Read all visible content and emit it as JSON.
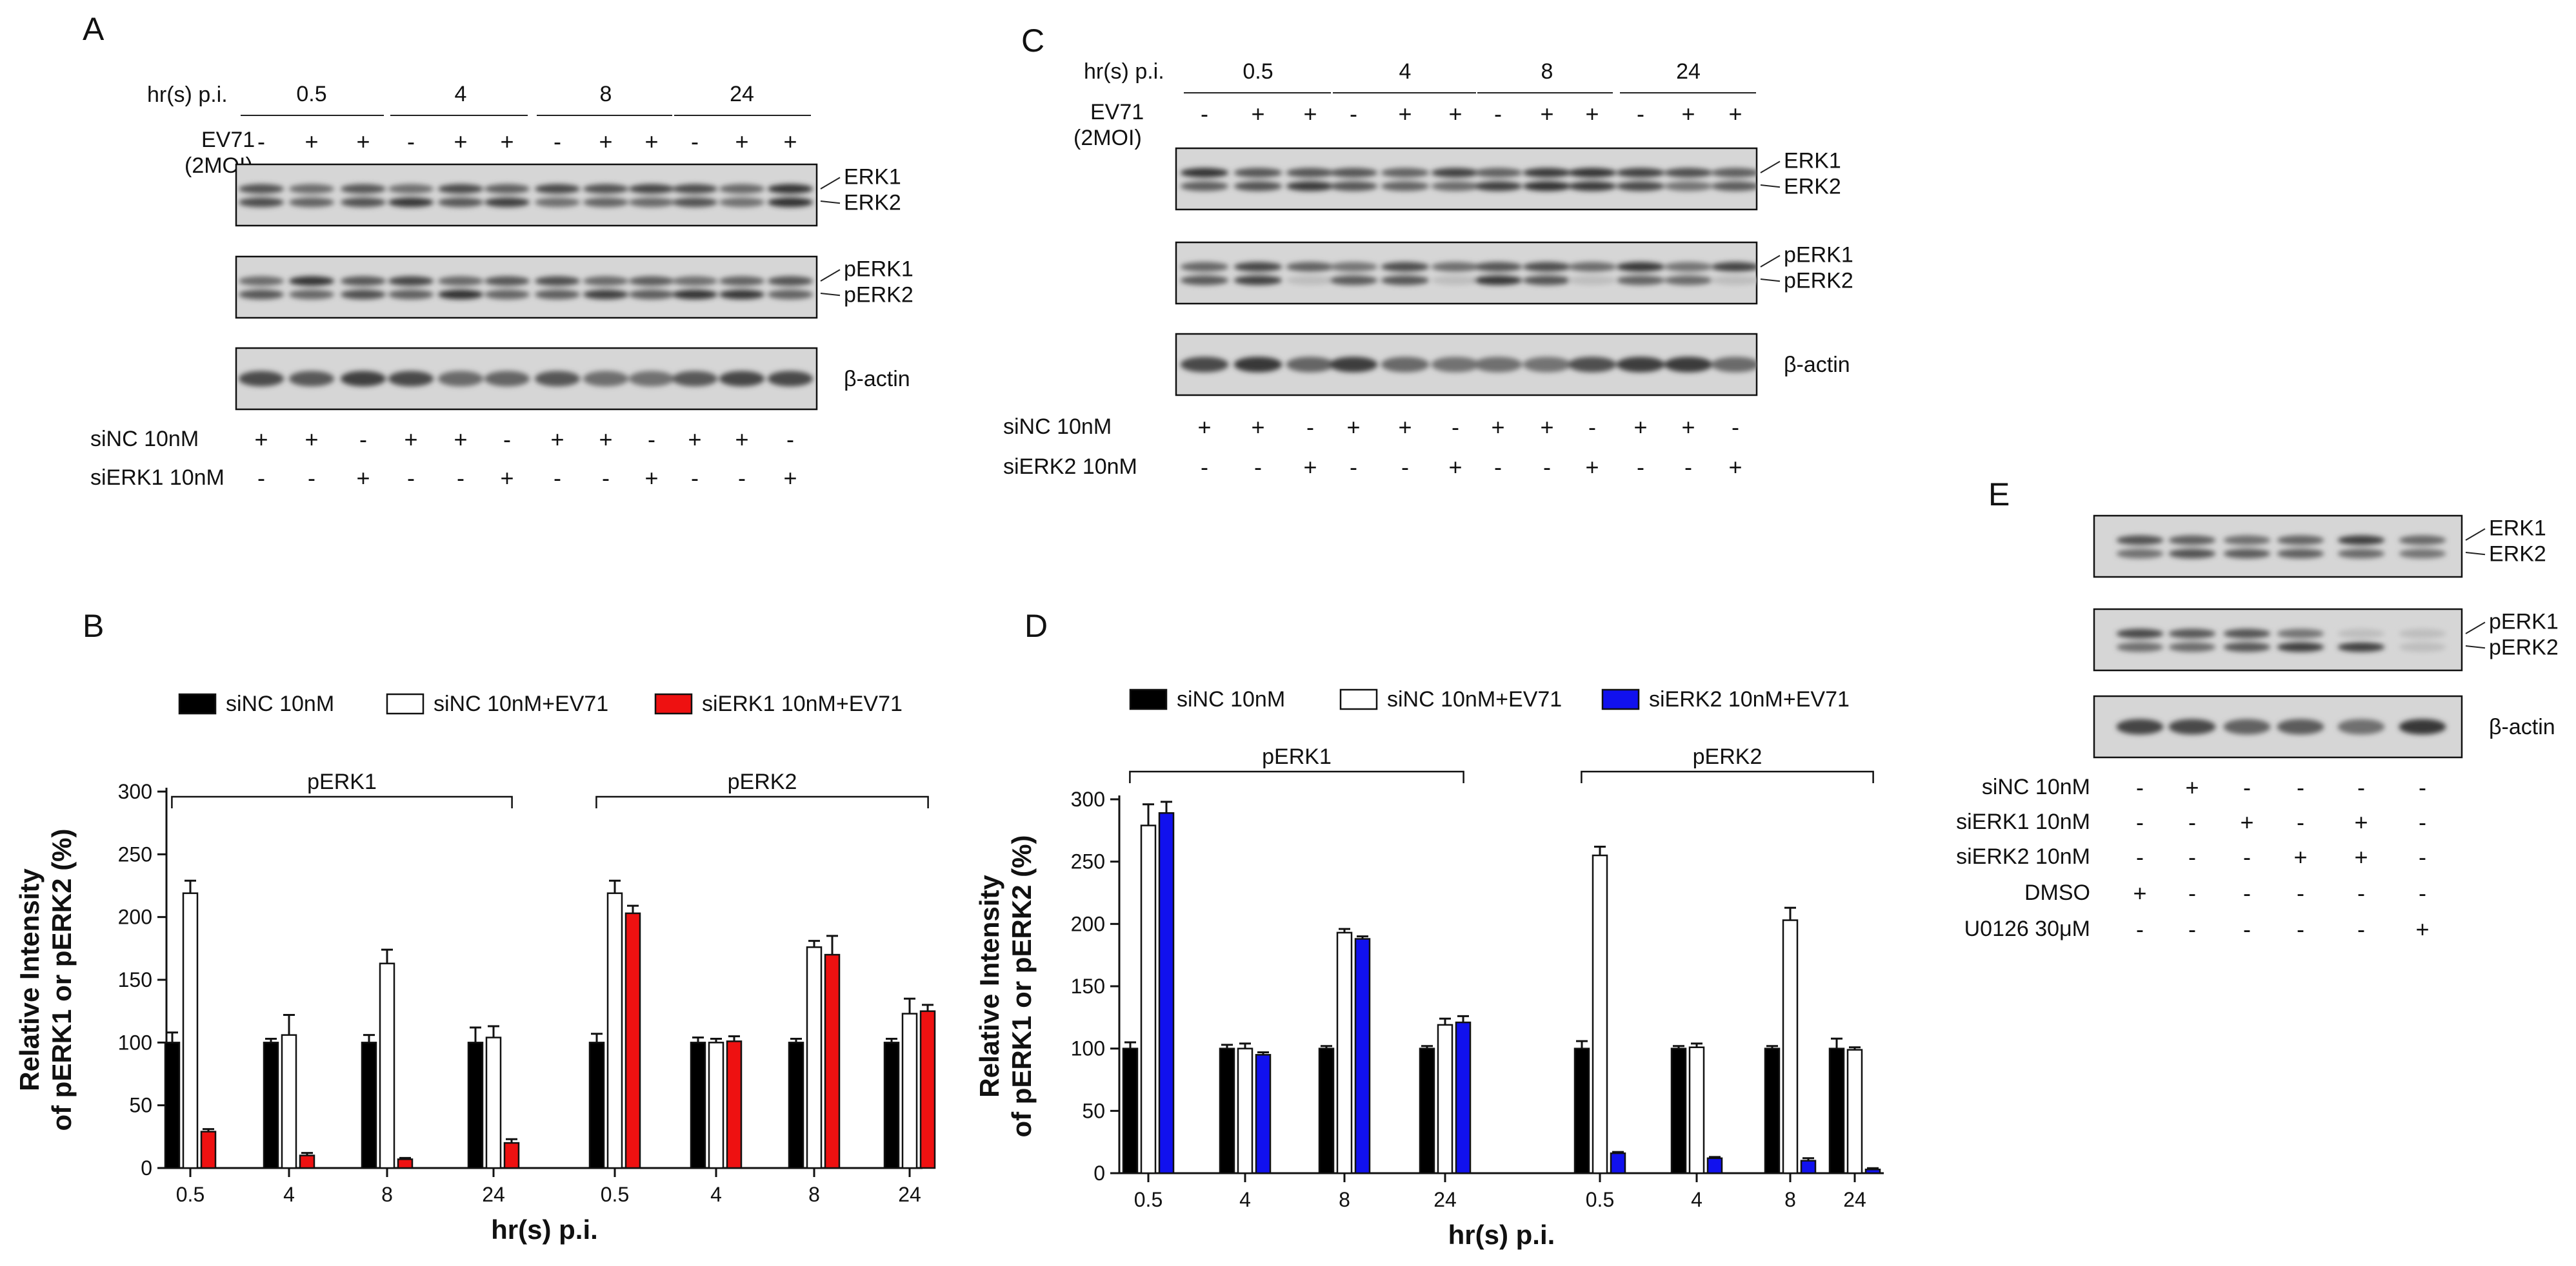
{
  "panels": {
    "A": {
      "letter": "A",
      "hrs_label": "hr(s) p.i.",
      "timepoints": [
        "0.5",
        "4",
        "8",
        "24"
      ],
      "ev71_label": "EV71",
      "moi_label": "(2MOI)",
      "ev71_signs": [
        "-",
        "+",
        "+",
        "-",
        "+",
        "+",
        "-",
        "+",
        "+",
        "-",
        "+",
        "+"
      ],
      "blots": [
        {
          "labels": [
            "ERK1",
            "ERK2"
          ]
        },
        {
          "labels": [
            "pERK1",
            "pERK2"
          ]
        },
        {
          "labels": [
            "β-actin"
          ]
        }
      ],
      "rows": [
        {
          "label": "siNC 10nM",
          "signs": [
            "+",
            "+",
            "-",
            "+",
            "+",
            "-",
            "+",
            "+",
            "-",
            "+",
            "+",
            "-"
          ]
        },
        {
          "label": "siERK1 10nM",
          "signs": [
            "-",
            "-",
            "+",
            "-",
            "-",
            "+",
            "-",
            "-",
            "+",
            "-",
            "-",
            "+"
          ]
        }
      ]
    },
    "C": {
      "letter": "C",
      "hrs_label": "hr(s) p.i.",
      "timepoints": [
        "0.5",
        "4",
        "8",
        "24"
      ],
      "ev71_label": "EV71",
      "moi_label": "(2MOI)",
      "ev71_signs": [
        "-",
        "+",
        "+",
        "-",
        "+",
        "+",
        "-",
        "+",
        "+",
        "-",
        "+",
        "+"
      ],
      "blots": [
        {
          "labels": [
            "ERK1",
            "ERK2"
          ]
        },
        {
          "labels": [
            "pERK1",
            "pERK2"
          ]
        },
        {
          "labels": [
            "β-actin"
          ]
        }
      ],
      "rows": [
        {
          "label": "siNC 10nM",
          "signs": [
            "+",
            "+",
            "-",
            "+",
            "+",
            "-",
            "+",
            "+",
            "-",
            "+",
            "+",
            "-"
          ]
        },
        {
          "label": "siERK2 10nM",
          "signs": [
            "-",
            "-",
            "+",
            "-",
            "-",
            "+",
            "-",
            "-",
            "+",
            "-",
            "-",
            "+"
          ]
        }
      ]
    },
    "E": {
      "letter": "E",
      "blots": [
        {
          "labels": [
            "ERK1",
            "ERK2"
          ]
        },
        {
          "labels": [
            "pERK1",
            "pERK2"
          ]
        },
        {
          "labels": [
            "β-actin"
          ]
        }
      ],
      "rows": [
        {
          "label": "siNC 10nM",
          "signs": [
            "-",
            "+",
            "-",
            "-",
            "-",
            "-"
          ]
        },
        {
          "label": "siERK1 10nM",
          "signs": [
            "-",
            "-",
            "+",
            "-",
            "+",
            "-"
          ]
        },
        {
          "label": "siERK2 10nM",
          "signs": [
            "-",
            "-",
            "-",
            "+",
            "+",
            "-"
          ]
        },
        {
          "label": "DMSO",
          "signs": [
            "+",
            "-",
            "-",
            "-",
            "-",
            "-"
          ]
        },
        {
          "label": "U0126  30μM",
          "signs": [
            "-",
            "-",
            "-",
            "-",
            "-",
            "+"
          ]
        }
      ]
    }
  },
  "chart_data": [
    {
      "type": "bar",
      "panel": "B",
      "ylabel_lines": [
        "Relative Intensity",
        "of pERK1 or pERK2 (%)"
      ],
      "xlabel": "hr(s) p.i.",
      "ylim": [
        0,
        300
      ],
      "yticks": [
        0,
        50,
        100,
        150,
        200,
        250,
        300
      ],
      "groups": [
        "pERK1",
        "pERK2"
      ],
      "categories": [
        "0.5",
        "4",
        "8",
        "24"
      ],
      "series": [
        {
          "name": "siNC 10nM",
          "color": "#000000",
          "values": [
            [
              100,
              100,
              100,
              100
            ],
            [
              100,
              100,
              100,
              100
            ]
          ],
          "errors": [
            [
              8,
              3,
              6,
              12
            ],
            [
              7,
              4,
              3,
              3
            ]
          ]
        },
        {
          "name": "siNC 10nM+EV71",
          "color": "#ffffff",
          "values": [
            [
              219,
              106,
              163,
              104
            ],
            [
              219,
              100,
              176,
              123
            ]
          ],
          "errors": [
            [
              10,
              16,
              11,
              9
            ],
            [
              10,
              3,
              5,
              12
            ]
          ]
        },
        {
          "name": "siERK1 10nM+EV71",
          "color": "#ee1111",
          "values": [
            [
              29,
              10,
              7,
              20
            ],
            [
              203,
              101,
              170,
              125
            ]
          ],
          "errors": [
            [
              2,
              2,
              1,
              3
            ],
            [
              6,
              4,
              15,
              5
            ]
          ]
        }
      ]
    },
    {
      "type": "bar",
      "panel": "D",
      "ylabel_lines": [
        "Relative Intensity",
        "of pERK1 or pERK2 (%)"
      ],
      "xlabel": "hr(s) p.i.",
      "ylim": [
        0,
        300
      ],
      "yticks": [
        0,
        50,
        100,
        150,
        200,
        250,
        300
      ],
      "groups": [
        "pERK1",
        "pERK2"
      ],
      "categories": [
        "0.5",
        "4",
        "8",
        "24"
      ],
      "series": [
        {
          "name": "siNC 10nM",
          "color": "#000000",
          "values": [
            [
              100,
              100,
              100,
              100
            ],
            [
              100,
              100,
              100,
              100
            ]
          ],
          "errors": [
            [
              5,
              3,
              2,
              2
            ],
            [
              6,
              2,
              2,
              8
            ]
          ]
        },
        {
          "name": "siNC 10nM+EV71",
          "color": "#ffffff",
          "values": [
            [
              279,
              100,
              193,
              119
            ],
            [
              255,
              101,
              203,
              99
            ]
          ],
          "errors": [
            [
              17,
              4,
              3,
              5
            ],
            [
              7,
              3,
              10,
              2
            ]
          ]
        },
        {
          "name": "siERK2 10nM+EV71",
          "color": "#1111ee",
          "values": [
            [
              289,
              95,
              188,
              121
            ],
            [
              16,
              12,
              10,
              3
            ]
          ],
          "errors": [
            [
              9,
              2,
              2,
              5
            ],
            [
              1,
              1,
              2,
              1
            ]
          ]
        }
      ]
    }
  ]
}
